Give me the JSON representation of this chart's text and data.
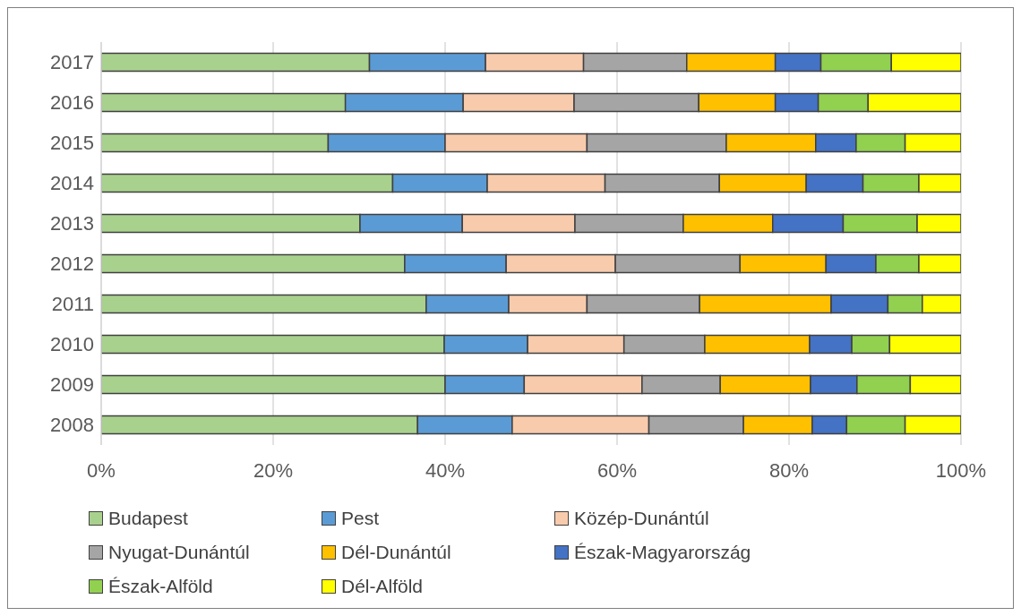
{
  "chart_data": {
    "type": "bar",
    "orientation": "horizontal",
    "stacked": true,
    "categories": [
      "2017",
      "2016",
      "2015",
      "2014",
      "2013",
      "2012",
      "2011",
      "2010",
      "2009",
      "2008"
    ],
    "series": [
      {
        "name": "Budapest",
        "color": "#a9d18e",
        "values": [
          31.2,
          28.4,
          26.4,
          33.9,
          30.1,
          35.3,
          37.8,
          39.9,
          40.0,
          36.8
        ]
      },
      {
        "name": "Pest",
        "color": "#5b9bd5",
        "values": [
          13.5,
          13.7,
          13.6,
          11.0,
          11.9,
          11.8,
          9.6,
          9.7,
          9.2,
          11.0
        ]
      },
      {
        "name": "Közép-Dunántúl",
        "color": "#f8cbad",
        "values": [
          11.4,
          12.9,
          16.5,
          13.7,
          13.1,
          12.7,
          9.1,
          11.2,
          13.7,
          15.9
        ]
      },
      {
        "name": "Nyugat-Dunántúl",
        "color": "#a5a5a5",
        "values": [
          12.0,
          14.5,
          16.2,
          13.3,
          12.6,
          14.5,
          13.1,
          9.4,
          9.1,
          11.0
        ]
      },
      {
        "name": "Dél-Dunántúl",
        "color": "#ffc000",
        "values": [
          10.3,
          8.9,
          10.4,
          10.1,
          10.4,
          10.0,
          15.3,
          12.2,
          10.5,
          8.0
        ]
      },
      {
        "name": "Észak-Magyarország",
        "color": "#4472c4",
        "values": [
          5.3,
          5.0,
          4.7,
          6.6,
          8.2,
          5.8,
          6.6,
          4.9,
          5.4,
          4.0
        ]
      },
      {
        "name": "Észak-Alföld",
        "color": "#92d050",
        "values": [
          8.2,
          5.8,
          5.7,
          6.5,
          8.6,
          5.0,
          4.0,
          4.4,
          6.2,
          6.8
        ]
      },
      {
        "name": "Dél-Alföld",
        "color": "#ffff00",
        "values": [
          8.1,
          10.8,
          6.5,
          4.9,
          5.1,
          4.9,
          4.5,
          8.3,
          5.9,
          6.5
        ]
      }
    ],
    "xlim": [
      0,
      100
    ],
    "xticks": [
      {
        "value": 0,
        "label": "0%"
      },
      {
        "value": 20,
        "label": "20%"
      },
      {
        "value": 40,
        "label": "40%"
      },
      {
        "value": 60,
        "label": "60%"
      },
      {
        "value": 80,
        "label": "80%"
      },
      {
        "value": 100,
        "label": "100%"
      }
    ],
    "grid": "x",
    "legend": "bottom"
  }
}
